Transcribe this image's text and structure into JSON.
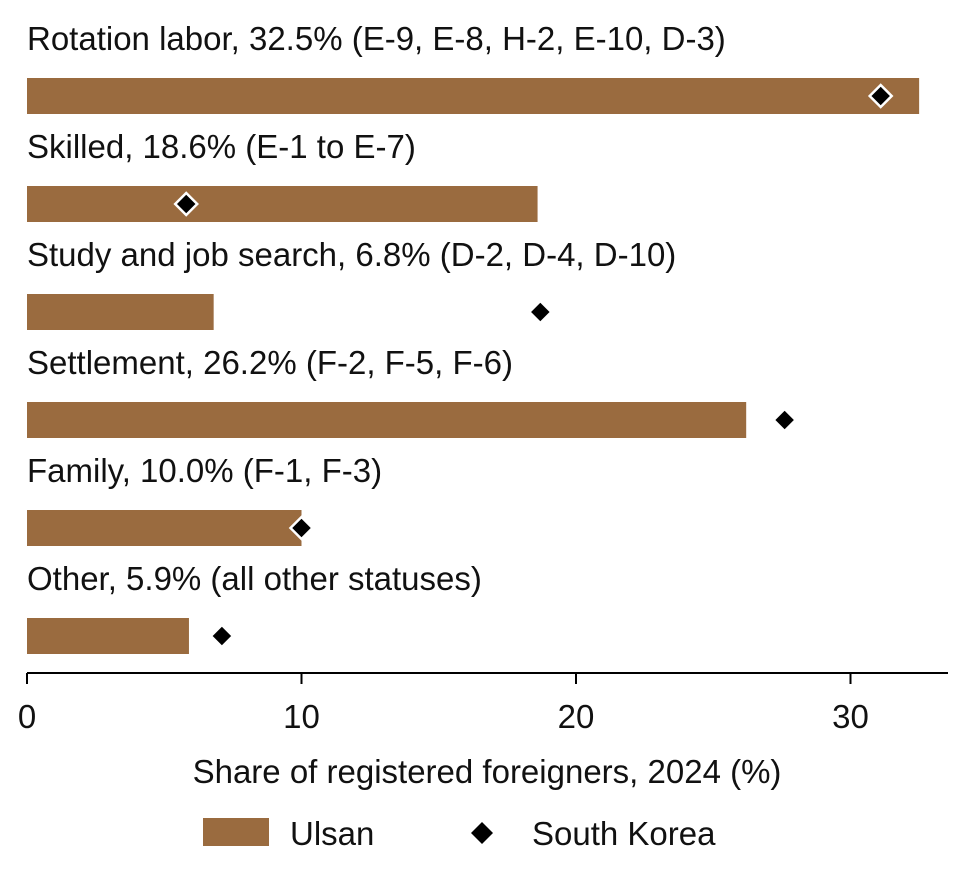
{
  "chart_data": {
    "type": "bar",
    "orientation": "horizontal",
    "categories": [
      "Rotation labor, 32.5% (E-9, E-8, H-2, E-10, D-3)",
      "Skilled, 18.6% (E-1 to E-7)",
      "Study and job search, 6.8% (D-2, D-4, D-10)",
      "Settlement, 26.2% (F-2, F-5, F-6)",
      "Family, 10.0% (F-1, F-3)",
      "Other, 5.9% (all other statuses)"
    ],
    "series": [
      {
        "name": "Ulsan",
        "mark": "bar",
        "color": "#9a6b3f",
        "values": [
          32.5,
          18.6,
          6.8,
          26.2,
          10.0,
          5.9
        ]
      },
      {
        "name": "South Korea",
        "mark": "diamond",
        "color": "#000000",
        "values": [
          31.1,
          5.8,
          18.7,
          27.6,
          10.0,
          7.1
        ]
      }
    ],
    "xlabel": "Share of registered foreigners, 2024 (%)",
    "xlim": [
      0,
      33.5
    ],
    "xticks": [
      "0",
      "10",
      "20",
      "30"
    ],
    "grid": false,
    "legend_position": "bottom"
  }
}
